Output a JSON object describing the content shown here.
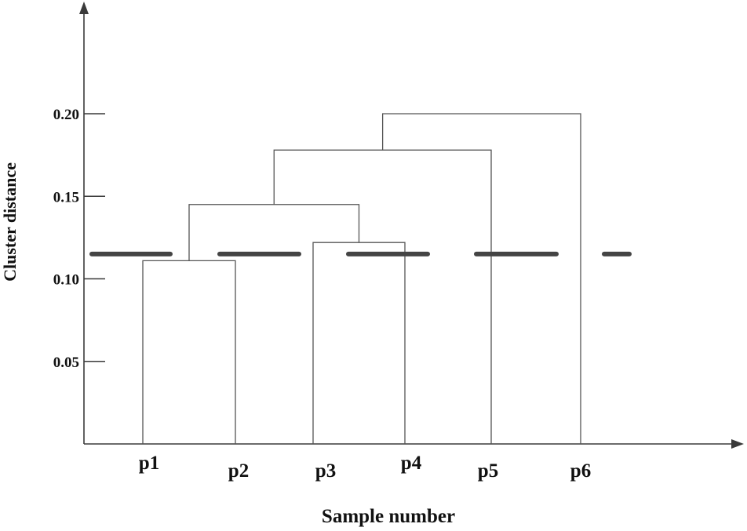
{
  "chart_data": {
    "type": "dendrogram",
    "xlabel": "Sample number",
    "ylabel": "Cluster distance",
    "ylim": [
      0,
      0.2
    ],
    "y_ticks": [
      "0.05",
      "0.10",
      "0.15",
      "0.20"
    ],
    "y_tick_values": [
      0.05,
      0.1,
      0.15,
      0.2
    ],
    "leaves": [
      "p1",
      "p2",
      "p3",
      "p4",
      "p5",
      "p6"
    ],
    "merges": [
      {
        "left": "p1",
        "right": "p2",
        "height": 0.111
      },
      {
        "left": "p3",
        "right": "p4",
        "height": 0.122
      },
      {
        "left": "p1-p2",
        "right": "p3-p4",
        "height": 0.145
      },
      {
        "left": "p1-p4",
        "right": "p5",
        "height": 0.178
      },
      {
        "left": "p1-p5",
        "right": "p6",
        "height": 0.2
      }
    ],
    "cut_threshold": 0.115,
    "cut_line_style": "dashed"
  }
}
